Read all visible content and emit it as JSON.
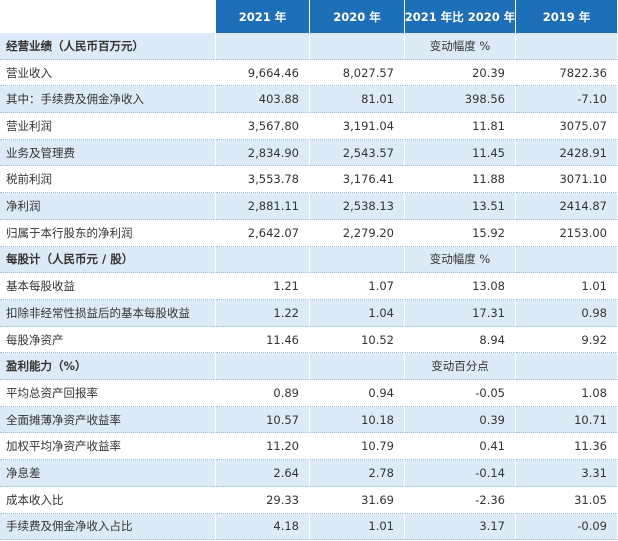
{
  "table": {
    "header": [
      "2021 年",
      "2020 年",
      "2021 年比 2020 年",
      "2019 年"
    ],
    "rows": [
      {
        "section": "经营业绩（人民币百万元）",
        "note": "变动幅度 %"
      },
      [
        "营业收入",
        "9,664.46",
        "8,027.57",
        "20.39",
        "7822.36"
      ],
      [
        "其中：手续费及佣金净收入",
        "403.88",
        "81.01",
        "398.56",
        "-7.10"
      ],
      [
        "营业利润",
        "3,567.80",
        "3,191.04",
        "11.81",
        "3075.07"
      ],
      [
        "业务及管理费",
        "2,834.90",
        "2,543.57",
        "11.45",
        "2428.91"
      ],
      [
        "税前利润",
        "3,553.78",
        "3,176.41",
        "11.88",
        "3071.10"
      ],
      [
        "净利润",
        "2,881.11",
        "2,538.13",
        "13.51",
        "2414.87"
      ],
      [
        "归属于本行股东的净利润",
        "2,642.07",
        "2,279.20",
        "15.92",
        "2153.00"
      ],
      {
        "section": "每股计（人民币元 / 股）",
        "note": "变动幅度 %"
      },
      [
        "基本每股收益",
        "1.21",
        "1.07",
        "13.08",
        "1.01"
      ],
      [
        "扣除非经常性损益后的基本每股收益",
        "1.22",
        "1.04",
        "17.31",
        "0.98"
      ],
      [
        "每股净资产",
        "11.46",
        "10.52",
        "8.94",
        "9.92"
      ],
      {
        "section": "盈利能力（%）",
        "note": "变动百分点"
      },
      [
        "平均总资产回报率",
        "0.89",
        "0.94",
        "-0.05",
        "1.08"
      ],
      [
        "全面摊薄净资产收益率",
        "10.57",
        "10.18",
        "0.39",
        "10.71"
      ],
      [
        "加权平均净资产收益率",
        "11.20",
        "10.79",
        "0.41",
        "11.36"
      ],
      [
        "净息差",
        "2.64",
        "2.78",
        "-0.14",
        "3.31"
      ],
      [
        "成本收入比",
        "29.33",
        "31.69",
        "-2.36",
        "31.05"
      ],
      [
        "手续费及佣金净收入占比",
        "4.18",
        "1.01",
        "3.17",
        "-0.09"
      ]
    ]
  }
}
